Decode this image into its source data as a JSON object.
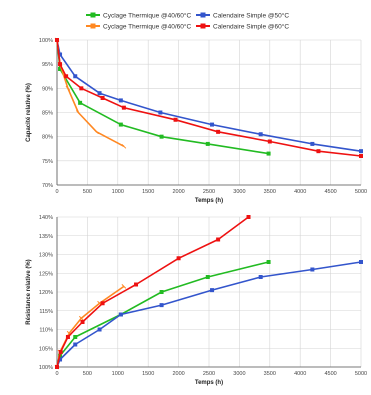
{
  "legend": {
    "items": [
      {
        "label": "Cyclage Thermique @40/60°C",
        "color": "#22bb22"
      },
      {
        "label": "Calendaire Simple @50°C",
        "color": "#3355cc"
      },
      {
        "label": "Cyclage Thermique @40/60°C",
        "color": "#ff8822"
      },
      {
        "label": "Calendaire Simple @60°C",
        "color": "#ee1111"
      }
    ]
  },
  "chart_data": [
    {
      "type": "line",
      "xlabel": "Temps (h)",
      "ylabel": "Capacité relative (%)",
      "xlim": [
        0,
        5000
      ],
      "ylim": [
        70,
        100
      ],
      "xticks": [
        "0",
        "500",
        "1000",
        "1500",
        "2000",
        "2500",
        "3000",
        "3500",
        "4000",
        "4500",
        "5000"
      ],
      "yticks": [
        "70%",
        "75%",
        "80%",
        "85%",
        "90%",
        "95%",
        "100%"
      ],
      "grid": true,
      "series": [
        {
          "name": "Cyclage Thermique @40/60°C",
          "color": "#22bb22",
          "x": [
            0,
            50,
            380,
            1050,
            1720,
            2480,
            3480
          ],
          "y": [
            100,
            94,
            87,
            82.5,
            80,
            78.5,
            76.5
          ]
        },
        {
          "name": "Calendaire Simple @50°C",
          "color": "#3355cc",
          "x": [
            0,
            50,
            300,
            700,
            1050,
            1700,
            2550,
            3350,
            4200,
            5000
          ],
          "y": [
            100,
            97,
            92.5,
            89,
            87.5,
            85,
            82.5,
            80.5,
            78.5,
            77
          ]
        },
        {
          "name": "Cyclage Thermique @40/60°C",
          "color": "#ff8822",
          "x": [
            0,
            50,
            180,
            350,
            650,
            1100
          ],
          "y": [
            100,
            95,
            90,
            85,
            81,
            78
          ]
        },
        {
          "name": "Calendaire Simple @60°C",
          "color": "#ee1111",
          "x": [
            0,
            50,
            150,
            400,
            750,
            1100,
            1950,
            2650,
            3500,
            4300,
            5000
          ],
          "y": [
            100,
            95,
            92.5,
            90,
            88,
            86,
            83.5,
            81,
            79,
            77,
            76
          ]
        }
      ]
    },
    {
      "type": "line",
      "xlabel": "Temps (h)",
      "ylabel": "Résistance relative (%)",
      "xlim": [
        0,
        5000
      ],
      "ylim": [
        100,
        140
      ],
      "xticks": [
        "0",
        "500",
        "1000",
        "1500",
        "2000",
        "2500",
        "3000",
        "3500",
        "4000",
        "4500",
        "5000"
      ],
      "yticks": [
        "100%",
        "105%",
        "110%",
        "115%",
        "120%",
        "125%",
        "130%",
        "135%",
        "140%"
      ],
      "grid": true,
      "series": [
        {
          "name": "Cyclage Thermique @40/60°C",
          "color": "#22bb22",
          "x": [
            0,
            50,
            300,
            1050,
            1720,
            2480,
            3480
          ],
          "y": [
            100,
            103,
            108,
            114,
            120,
            124,
            128
          ]
        },
        {
          "name": "Calendaire Simple @50°C",
          "color": "#3355cc",
          "x": [
            0,
            50,
            300,
            700,
            1050,
            1720,
            2550,
            3350,
            4200,
            5000
          ],
          "y": [
            100,
            102,
            106,
            110,
            114,
            116.5,
            120.5,
            124,
            126,
            128
          ]
        },
        {
          "name": "Cyclage Thermique @40/60°C",
          "color": "#ff8822",
          "x": [
            0,
            50,
            200,
            400,
            700,
            1100
          ],
          "y": [
            100,
            104,
            109,
            113,
            117,
            121.5
          ]
        },
        {
          "name": "Calendaire Simple @60°C",
          "color": "#ee1111",
          "x": [
            0,
            60,
            180,
            420,
            750,
            1300,
            2000,
            2650,
            3150
          ],
          "y": [
            100,
            104,
            108,
            112,
            117,
            122,
            129,
            134,
            140
          ]
        }
      ]
    }
  ]
}
